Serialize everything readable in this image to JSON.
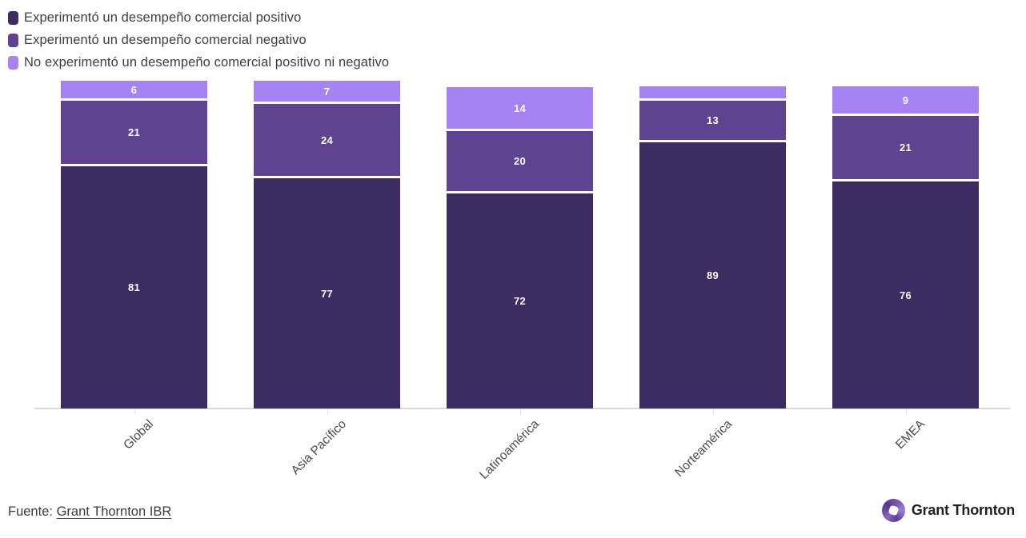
{
  "chart_data": {
    "type": "bar",
    "subtype": "stacked-vertical",
    "categories": [
      "Global",
      "Asia Pacífico",
      "Latinoamérica",
      "Norteamérica",
      "EMEA"
    ],
    "series": [
      {
        "name": "Experimentó un desempeño comercial positivo",
        "color": "#3d2c62",
        "values": [
          81,
          77,
          72,
          89,
          76
        ]
      },
      {
        "name": "Experimentó un desempeño comercial negativo",
        "color": "#5e4391",
        "values": [
          21,
          24,
          20,
          13,
          21
        ]
      },
      {
        "name": "No experimentó un desempeño comercial positivo ni negativo",
        "color": "#a583f2",
        "values": [
          6,
          7,
          14,
          4,
          9
        ]
      }
    ],
    "stack_order_top_to_bottom": [
      "No experimentó un desempeño comercial positivo ni negativo",
      "Experimentó un desempeño comercial negativo",
      "Experimentó un desempeño comercial positivo"
    ],
    "data_label_color": "#ffffff",
    "legend_position": "top-left",
    "grid": false,
    "xlabel": "",
    "ylabel": "",
    "notes_visible_labels": "Norteamérica top segment too small to display its value label"
  },
  "footer": {
    "source_prefix": "Fuente:",
    "source_link_text": "Grant Thornton IBR",
    "brand_name": "Grant Thornton"
  }
}
